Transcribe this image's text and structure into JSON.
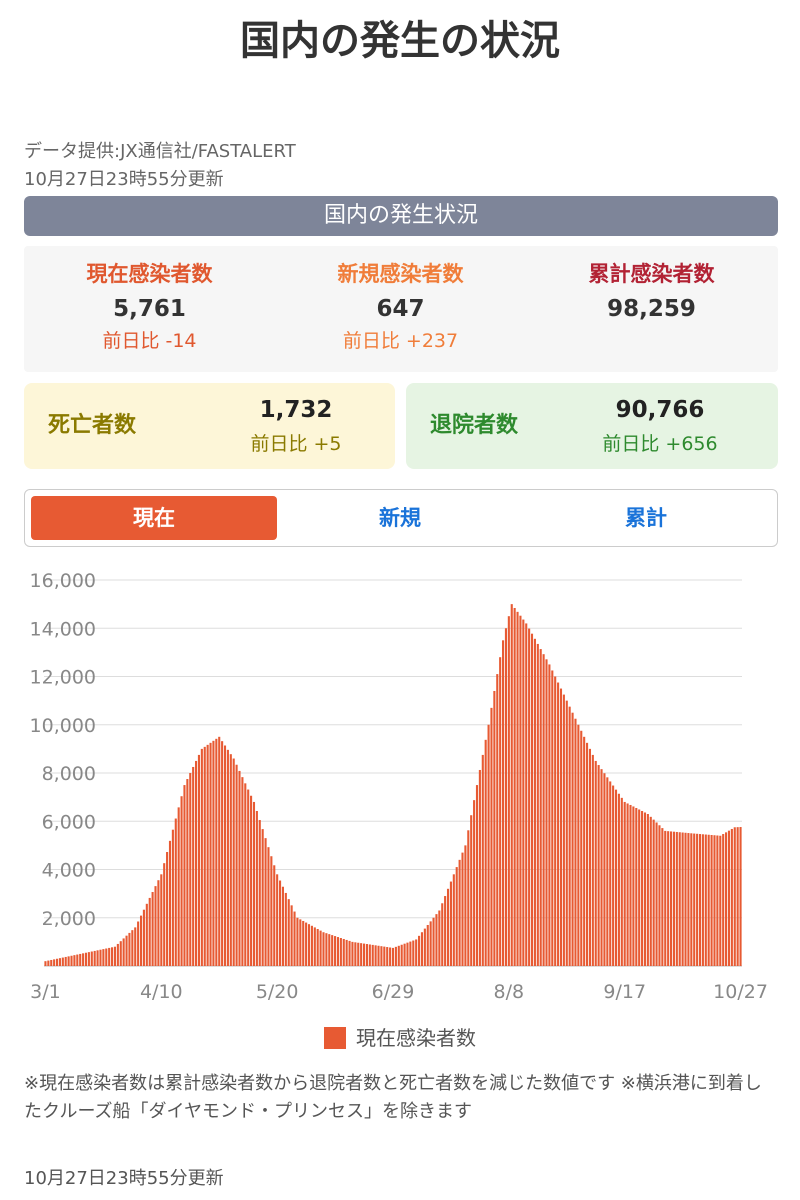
{
  "page": {
    "title": "国内の発生の状況",
    "source": "データ提供:JX通信社/FASTALERT",
    "updated": "10月27日23時55分更新"
  },
  "banner": "国内の発生状況",
  "stats": [
    {
      "label": "現在感染者数",
      "value": "5,761",
      "diff": "前日比 -14",
      "color": "#e0582f"
    },
    {
      "label": "新規感染者数",
      "value": "647",
      "diff": "前日比 +237",
      "color": "#f07d3a"
    },
    {
      "label": "累計感染者数",
      "value": "98,259",
      "diff": "",
      "color": "#b22234"
    }
  ],
  "deaths": {
    "label": "死亡者数",
    "value": "1,732",
    "diff": "前日比 +5"
  },
  "discharged": {
    "label": "退院者数",
    "value": "90,766",
    "diff": "前日比 +656"
  },
  "tabs": [
    {
      "label": "現在",
      "active": true
    },
    {
      "label": "新規",
      "active": false
    },
    {
      "label": "累計",
      "active": false
    }
  ],
  "colors": {
    "accent": "#e75a33",
    "banner": "#7e8599",
    "deaths_bg": "#fdf6d8",
    "deaths_text": "#8a7a00",
    "discharged_bg": "#e6f4e3",
    "discharged_text": "#2e8a2e"
  },
  "chart_data": {
    "type": "bar",
    "title": "",
    "xlabel": "",
    "ylabel": "",
    "ylim": [
      0,
      16000
    ],
    "yticks": [
      "16,000",
      "14,000",
      "12,000",
      "10,000",
      "8,000",
      "6,000",
      "4,000",
      "2,000"
    ],
    "yticks_values": [
      16000,
      14000,
      12000,
      10000,
      8000,
      6000,
      4000,
      2000
    ],
    "x_ticks": [
      "3/1",
      "4/10",
      "5/20",
      "6/29",
      "8/8",
      "9/17",
      "10/27"
    ],
    "start_date": "3/1",
    "end_date": "10/27",
    "grid": true,
    "legend_position": "bottom",
    "series": [
      {
        "name": "現在感染者数",
        "color": "#e75a33"
      }
    ],
    "keypoints": [
      [
        "3/1",
        200
      ],
      [
        "3/15",
        550
      ],
      [
        "3/25",
        800
      ],
      [
        "4/1",
        1600
      ],
      [
        "4/10",
        3800
      ],
      [
        "4/18",
        7500
      ],
      [
        "4/24",
        9000
      ],
      [
        "4/30",
        9500
      ],
      [
        "5/5",
        8600
      ],
      [
        "5/12",
        6800
      ],
      [
        "5/20",
        3800
      ],
      [
        "5/27",
        2000
      ],
      [
        "6/5",
        1400
      ],
      [
        "6/15",
        1000
      ],
      [
        "6/29",
        750
      ],
      [
        "7/7",
        1100
      ],
      [
        "7/15",
        2300
      ],
      [
        "7/24",
        5000
      ],
      [
        "8/1",
        10000
      ],
      [
        "8/6",
        13500
      ],
      [
        "8/9",
        15000
      ],
      [
        "8/14",
        14200
      ],
      [
        "8/22",
        12500
      ],
      [
        "8/30",
        10500
      ],
      [
        "9/7",
        8500
      ],
      [
        "9/17",
        6800
      ],
      [
        "9/25",
        6300
      ],
      [
        "10/1",
        5600
      ],
      [
        "10/10",
        5500
      ],
      [
        "10/20",
        5400
      ],
      [
        "10/25",
        5750
      ],
      [
        "10/27",
        5761
      ]
    ]
  },
  "note": "※現在感染者数は累計感染者数から退院者数と死亡者数を減じた数値です ※横浜港に到着したクルーズ船「ダイヤモンド・プリンセス」を除きます",
  "footer": {
    "updated": "10月27日23時55分更新"
  }
}
